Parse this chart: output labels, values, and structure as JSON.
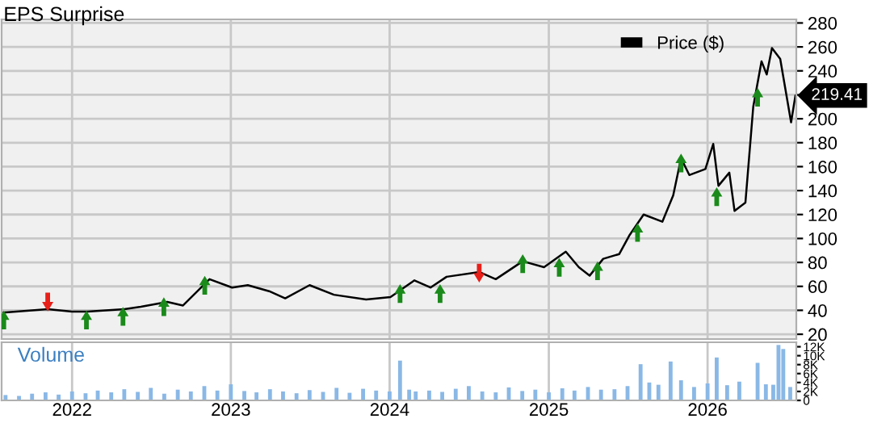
{
  "chart_data": [
    {
      "type": "line",
      "title": "EPS Surprise",
      "xlim": [
        "2021-07-23",
        "2026-07-24"
      ],
      "xticks": [
        "2022",
        "2023",
        "2024",
        "2025",
        "2026"
      ],
      "ylim": [
        16,
        283
      ],
      "yticks": [
        20,
        40,
        60,
        80,
        100,
        120,
        140,
        160,
        180,
        200,
        {
          "value": 220,
          "label": null
        },
        240,
        260,
        280
      ],
      "grid": true,
      "legend": "top right",
      "tick_labels": "y",
      "series": [
        {
          "name": "Price ($)",
          "type": "line",
          "color": "#000000",
          "x": [
            "2021-07-26",
            "2021-11-06",
            "2022-01-01",
            "2022-02-05",
            "2022-05-01",
            "2022-06-08",
            "2022-08-08",
            "2022-09-13",
            "2022-11-13",
            "2023-01-04",
            "2023-02-09",
            "2023-03-30",
            "2023-05-06",
            "2023-07-01",
            "2023-08-26",
            "2023-11-08",
            "2024-01-03",
            "2024-02-27",
            "2024-04-04",
            "2024-05-11",
            "2024-07-25",
            "2024-09-01",
            "2024-11-02",
            "2024-12-21",
            "2025-02-09",
            "2025-03-11",
            "2025-04-05",
            "2025-05-06",
            "2025-06-12",
            "2025-07-06",
            "2025-08-07",
            "2025-09-19",
            "2025-10-14",
            "2025-11-01",
            "2025-11-20",
            "2025-12-27",
            "2026-01-14",
            "2026-01-26",
            "2026-02-20",
            "2026-03-04",
            "2026-03-29",
            "2026-04-16",
            "2026-05-05",
            "2026-05-17",
            "2026-05-29",
            "2026-06-17",
            "2026-07-12",
            "2026-07-22"
          ],
          "values": [
            38,
            41,
            39,
            39,
            41,
            43,
            47,
            44,
            66,
            59,
            61,
            56,
            50,
            61,
            53,
            49,
            51,
            65,
            59,
            68,
            72,
            66,
            81,
            76,
            89,
            76,
            69,
            83,
            87,
            103,
            120,
            114,
            136,
            167,
            153,
            158,
            179,
            144,
            155,
            123,
            130,
            210,
            248,
            237,
            259,
            250,
            197,
            219.41
          ],
          "value_labels": [
            null,
            null,
            null,
            null,
            null,
            null,
            null,
            null,
            null,
            null,
            null,
            null,
            null,
            null,
            null,
            null,
            null,
            null,
            null,
            null,
            null,
            null,
            null,
            null,
            null,
            null,
            null,
            null,
            null,
            null,
            null,
            null,
            null,
            null,
            null,
            null,
            null,
            null,
            null,
            null,
            null,
            null,
            null,
            null,
            null,
            null,
            null,
            "219.41"
          ]
        },
        {
          "type": "scatter",
          "marker": "triangle",
          "color": "#1a8a1a",
          "x": [
            "2021-07-28",
            "2022-02-03",
            "2022-04-28",
            "2022-07-31",
            "2022-11-02",
            "2024-01-25",
            "2024-04-26",
            "2024-11-02",
            "2025-01-25",
            "2025-04-23",
            "2025-07-24",
            "2025-11-01",
            "2026-01-22",
            "2026-04-26"
          ],
          "values": [
            32,
            32,
            35,
            43,
            61,
            54,
            54,
            79,
            76,
            73,
            105,
            163,
            135,
            218
          ]
        },
        {
          "type": "scatter",
          "marker": "triangle_down",
          "color": "#e8201a",
          "x": [
            "2021-11-06",
            "2024-07-25"
          ],
          "values": [
            47,
            71
          ]
        }
      ]
    },
    {
      "type": "bar",
      "title": "Volume",
      "color": "#8ab8e6",
      "xlim": [
        "2021-07-23",
        "2026-07-24"
      ],
      "xticks": [
        "2022",
        "2023",
        "2024",
        "2025",
        "2026"
      ],
      "ylim": [
        0,
        13000
      ],
      "yticks": [
        0,
        {
          "value": 2000,
          "label": "2K"
        },
        {
          "value": 4000,
          "label": "4K"
        },
        {
          "value": 6000,
          "label": "6K"
        },
        {
          "value": 8000,
          "label": "8K"
        },
        {
          "value": 10000,
          "label": "10K"
        },
        {
          "value": 12000,
          "label": "12K"
        }
      ],
      "grid": "x",
      "x": [
        "2021-08-01",
        "2021-09-01",
        "2021-10-01",
        "2021-11-01",
        "2021-12-01",
        "2022-01-01",
        "2022-02-01",
        "2022-03-01",
        "2022-04-01",
        "2022-05-01",
        "2022-06-01",
        "2022-07-01",
        "2022-08-01",
        "2022-09-01",
        "2022-10-01",
        "2022-11-01",
        "2022-12-01",
        "2023-01-01",
        "2023-02-01",
        "2023-03-01",
        "2023-04-01",
        "2023-05-01",
        "2023-06-01",
        "2023-07-01",
        "2023-08-01",
        "2023-09-01",
        "2023-10-01",
        "2023-11-01",
        "2023-12-01",
        "2024-01-01",
        "2024-01-25",
        "2024-02-15",
        "2024-03-01",
        "2024-04-01",
        "2024-05-01",
        "2024-06-01",
        "2024-07-01",
        "2024-08-01",
        "2024-09-01",
        "2024-10-01",
        "2024-11-01",
        "2024-12-01",
        "2025-01-01",
        "2025-02-01",
        "2025-03-01",
        "2025-04-01",
        "2025-05-01",
        "2025-06-01",
        "2025-07-01",
        "2025-07-31",
        "2025-08-20",
        "2025-09-10",
        "2025-10-08",
        "2025-11-01",
        "2025-12-01",
        "2026-01-01",
        "2026-01-22",
        "2026-02-15",
        "2026-03-15",
        "2026-04-26",
        "2026-05-15",
        "2026-06-01",
        "2026-06-13",
        "2026-06-24",
        "2026-07-10"
      ],
      "values": [
        1200,
        1000,
        1500,
        1800,
        1300,
        2000,
        1600,
        2200,
        1800,
        2500,
        1900,
        2800,
        1500,
        2400,
        2000,
        3200,
        2200,
        3600,
        2100,
        1800,
        2500,
        2000,
        1600,
        2300,
        1900,
        2800,
        1700,
        2600,
        2200,
        2000,
        8900,
        2400,
        2000,
        2200,
        1900,
        2600,
        3200,
        2000,
        1800,
        2900,
        2100,
        2400,
        1800,
        2700,
        2200,
        3000,
        2400,
        2500,
        3200,
        8100,
        4000,
        3500,
        8700,
        4500,
        3000,
        3800,
        9600,
        3400,
        4200,
        8400,
        3600,
        3500,
        12400,
        11500,
        3000
      ]
    }
  ]
}
